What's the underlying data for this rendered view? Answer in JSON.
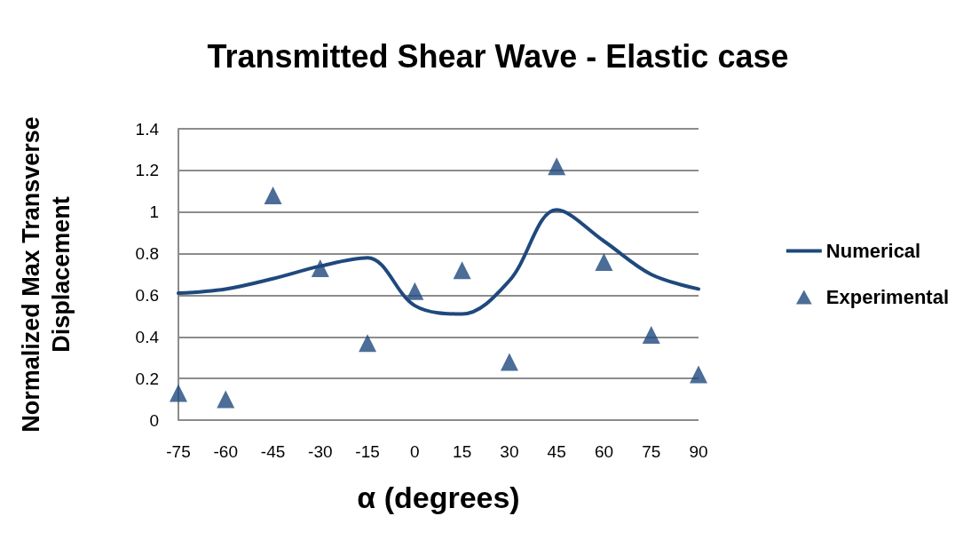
{
  "chart_data": {
    "type": "line",
    "title": "Transmitted Shear Wave - Elastic case",
    "xlabel": "α (degrees)",
    "ylabel": "Normalized Max Transverse\nDisplacement",
    "x": [
      -75,
      -60,
      -45,
      -30,
      -15,
      0,
      15,
      30,
      45,
      60,
      75,
      90
    ],
    "series": [
      {
        "name": "Numerical",
        "type": "line",
        "color": "#1f497d",
        "marker": "none",
        "line_style": "solid",
        "values": [
          0.61,
          0.63,
          0.68,
          0.74,
          0.78,
          0.55,
          0.51,
          0.67,
          1.01,
          0.86,
          0.7,
          0.63
        ]
      },
      {
        "name": "Experimental",
        "type": "scatter",
        "color": "#1f497d",
        "marker": "triangle",
        "values": [
          0.13,
          0.1,
          1.08,
          0.73,
          0.37,
          0.62,
          0.72,
          0.28,
          1.22,
          0.76,
          0.41,
          0.22
        ]
      }
    ],
    "xlim": [
      -75,
      90
    ],
    "xticks": [
      -75,
      -60,
      -45,
      -30,
      -15,
      0,
      15,
      30,
      45,
      60,
      75,
      90
    ],
    "ylim": [
      0,
      1.4
    ],
    "yticks": [
      0,
      0.2,
      0.4,
      0.6,
      0.8,
      1,
      1.2,
      1.4
    ],
    "grid": "y",
    "legend": "right"
  }
}
